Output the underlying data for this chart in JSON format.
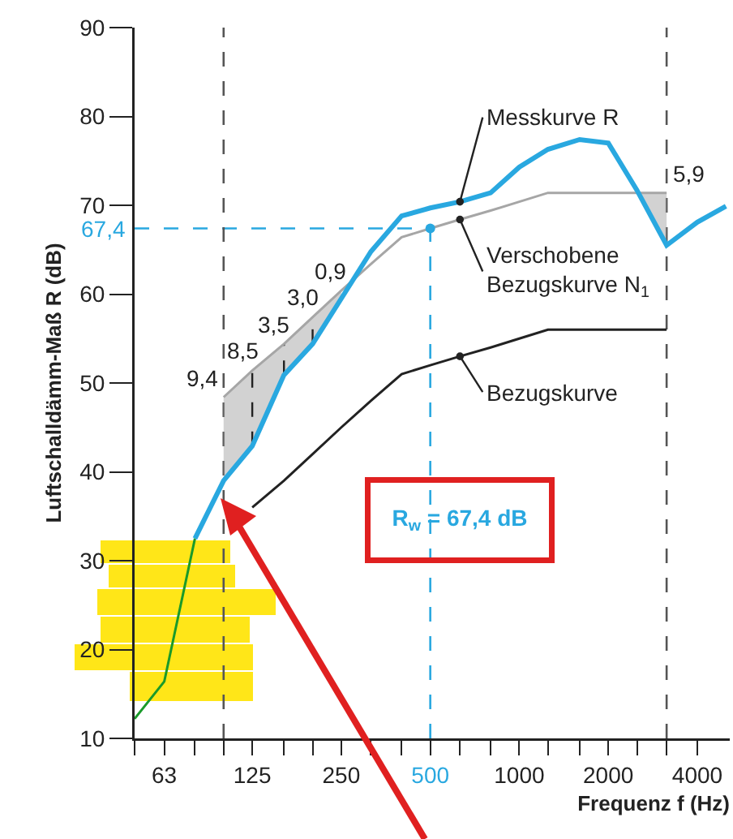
{
  "chart_data": {
    "type": "line",
    "xlabel": "Frequenz f (Hz)",
    "ylabel": "Luftschalldämm-Maß R (dB)",
    "log": "x",
    "xlim": [
      50,
      5150
    ],
    "ylim": [
      10,
      90
    ],
    "xticks": [
      {
        "value": 50,
        "label": null
      },
      63,
      {
        "value": 80,
        "label": null
      },
      {
        "value": 100,
        "label": null
      },
      125,
      {
        "value": 160,
        "label": null
      },
      {
        "value": 200,
        "label": null
      },
      250,
      {
        "value": 315,
        "label": null
      },
      {
        "value": 400,
        "label": null
      },
      500,
      {
        "value": 630,
        "label": null
      },
      {
        "value": 800,
        "label": null
      },
      1000,
      {
        "value": 1250,
        "label": null
      },
      {
        "value": 1600,
        "label": null
      },
      2000,
      {
        "value": 2500,
        "label": null
      },
      {
        "value": 3150,
        "label": null
      },
      4000
    ],
    "yticks": [
      10,
      20,
      30,
      40,
      50,
      60,
      70,
      80,
      90
    ],
    "grid": false,
    "marker": "none",
    "line_style": "solid",
    "series": [
      {
        "color": "#1a9a2a",
        "x": [
          50,
          63,
          80
        ],
        "values": [
          12.2,
          16.4,
          32.5
        ]
      },
      {
        "color": "#222222",
        "x": [
          125,
          160,
          200,
          250,
          315,
          400,
          500,
          630,
          800,
          1000,
          1250,
          1600,
          2000,
          2500,
          3150
        ],
        "values": [
          36,
          39,
          42,
          45,
          48,
          51,
          52,
          53,
          54,
          55,
          56,
          56,
          56,
          56,
          56
        ]
      },
      {
        "color": "#a6a6a6",
        "x": [
          100,
          125,
          160,
          200,
          250,
          315,
          400,
          500,
          630,
          800,
          1000,
          1250,
          1600,
          2000,
          2500,
          3150
        ],
        "values": [
          48.4,
          51.4,
          54.4,
          57.4,
          60.4,
          63.4,
          66.4,
          67.4,
          68.4,
          69.4,
          70.4,
          71.4,
          71.4,
          71.4,
          71.4,
          71.4
        ],
        "lower": [
          39.0,
          42.9,
          50.9,
          54.4,
          59.5,
          null,
          null,
          null,
          null,
          null,
          null,
          null,
          null,
          null,
          71.4,
          65.5
        ],
        "upper": [
          48.4,
          51.4,
          54.4,
          57.4,
          60.4,
          null,
          null,
          null,
          null,
          null,
          null,
          null,
          null,
          null,
          71.4,
          71.4
        ]
      },
      {
        "color": "#29a8e0",
        "x": [
          80,
          100,
          125,
          160,
          200,
          250,
          315,
          400,
          500,
          630,
          800,
          1000,
          1250,
          1600,
          2000,
          2500,
          3150,
          4000,
          5000
        ],
        "values": [
          32.5,
          39.0,
          42.9,
          50.9,
          54.4,
          59.5,
          64.8,
          68.8,
          69.7,
          70.4,
          71.4,
          74.3,
          76.3,
          77.4,
          77.0,
          71.7,
          65.5,
          68.1,
          69.9
        ]
      }
    ],
    "ref_lines": [
      {
        "axis": "x",
        "value": 100,
        "color": "#555555",
        "line_style": "dashed"
      },
      {
        "axis": "x",
        "value": 3150,
        "color": "#555555",
        "line_style": "dashed"
      },
      {
        "axis": "y",
        "value": 67.4,
        "label": "67,4",
        "color": "#29a8e0",
        "line_style": "dashed"
      },
      {
        "axis": "x",
        "value": 500,
        "color": "#29a8e0",
        "line_style": "dashed"
      }
    ],
    "annotations": [
      {
        "text": "9,4",
        "x": 100,
        "y": 48.4
      },
      {
        "text": "8,5",
        "x": 125,
        "y": 51.4
      },
      {
        "text": "3,5",
        "x": 160,
        "y": 54.4
      },
      {
        "text": "3,0",
        "x": 200,
        "y": 57.4
      },
      {
        "text": "0,9",
        "x": 250,
        "y": 60.4
      },
      {
        "text": "5,9",
        "x": 3150,
        "y": 71.4
      },
      {
        "text": "Messkurve R",
        "x": 630,
        "y": 70.4
      },
      {
        "text": "Verschobene\nBezugskurve N$_{1}$",
        "x": 630,
        "y": 68.4
      },
      {
        "text": "Bezugskurve",
        "x": 630,
        "y": 53
      },
      "R$_{w}$ = 67,4 dB"
    ]
  }
}
